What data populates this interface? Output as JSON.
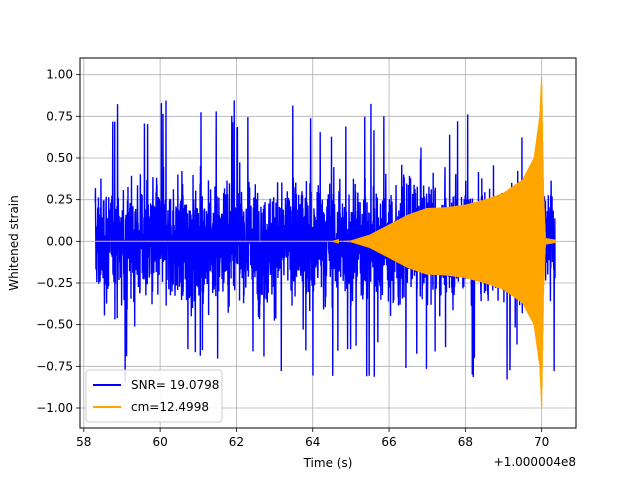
{
  "chart_data": {
    "type": "line",
    "xlabel": "Time (s)",
    "ylabel": "Whitened strain",
    "x_offset_label": "+1.000004e8",
    "xlim": [
      57.9,
      70.9
    ],
    "ylim": [
      -1.12,
      1.1
    ],
    "x_ticks": [
      58,
      60,
      62,
      64,
      66,
      68,
      70
    ],
    "x_tick_labels": [
      "58",
      "60",
      "62",
      "64",
      "66",
      "68",
      "70"
    ],
    "y_ticks": [
      -1.0,
      -0.75,
      -0.5,
      -0.25,
      0.0,
      0.25,
      0.5,
      0.75,
      1.0
    ],
    "y_tick_labels": [
      "−1.00",
      "−0.75",
      "−0.50",
      "−0.25",
      "0.00",
      "0.25",
      "0.50",
      "0.75",
      "1.00"
    ],
    "grid": true,
    "legend_position": "lower-left",
    "series": [
      {
        "name": "SNR= 19.0798",
        "color": "#0000ff",
        "x_range": [
          58.3,
          70.35
        ],
        "typical_amplitude": 0.45,
        "peak_max": 1.0,
        "peak_min": -1.04
      },
      {
        "name": "cm=12.4998",
        "color": "#ffa500",
        "x_range": [
          58.3,
          70.35
        ],
        "envelope": [
          [
            58.3,
            0.0
          ],
          [
            64.5,
            0.0
          ],
          [
            65.0,
            0.005
          ],
          [
            65.5,
            0.04
          ],
          [
            66.0,
            0.1
          ],
          [
            66.5,
            0.16
          ],
          [
            67.0,
            0.2
          ],
          [
            67.5,
            0.205
          ],
          [
            68.0,
            0.22
          ],
          [
            68.5,
            0.25
          ],
          [
            69.0,
            0.29
          ],
          [
            69.5,
            0.37
          ],
          [
            69.8,
            0.5
          ],
          [
            69.95,
            0.75
          ],
          [
            70.0,
            1.0
          ],
          [
            70.05,
            0.3
          ],
          [
            70.1,
            0.02
          ],
          [
            70.35,
            0.01
          ]
        ]
      }
    ]
  }
}
